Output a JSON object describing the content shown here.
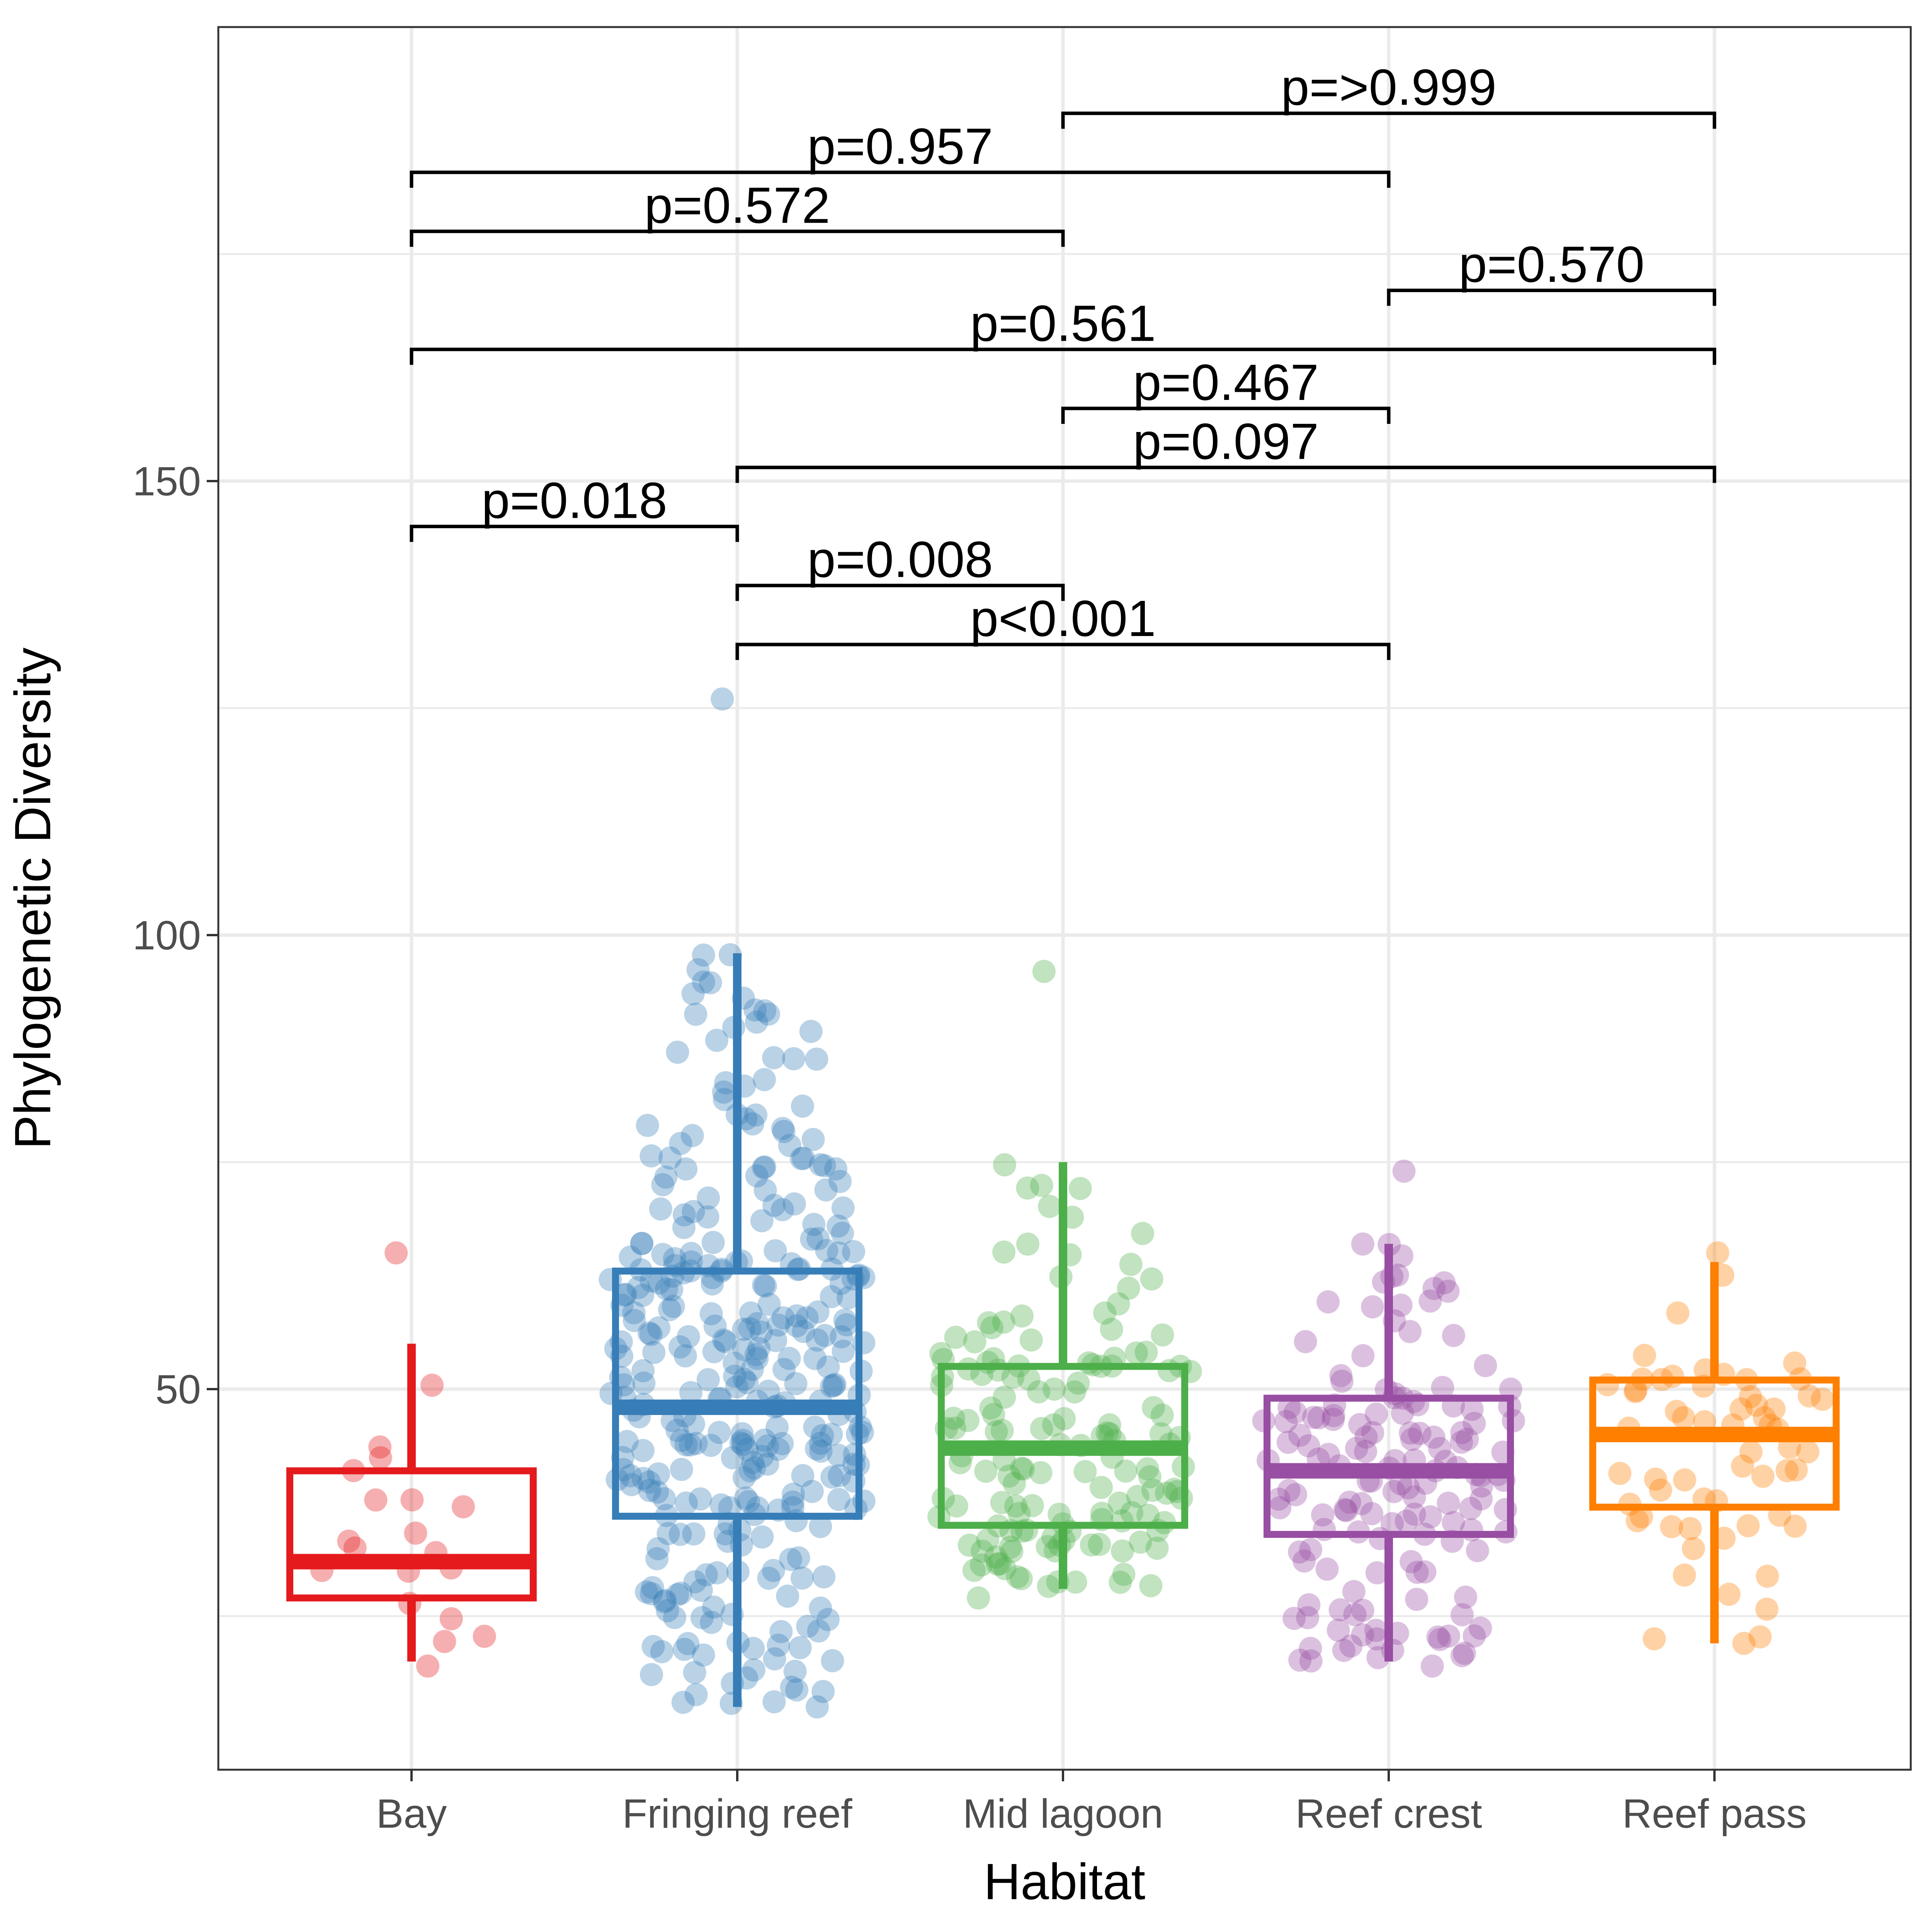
{
  "chart_data": {
    "type": "box",
    "xlabel": "Habitat",
    "ylabel": "Phylogenetic Diversity",
    "ylim": [
      10,
      190
    ],
    "y_ticks": [
      50,
      100,
      150
    ],
    "y_minor_ticks": [
      25,
      75,
      125,
      175
    ],
    "grid": true,
    "categories": [
      "Bay",
      "Fringing reef",
      "Mid lagoon",
      "Reef crest",
      "Reef pass"
    ],
    "colors": [
      "#E41A1C",
      "#377EB8",
      "#4DAF4A",
      "#984EA3",
      "#FF7F00"
    ],
    "boxes": [
      {
        "whisker_low": 20,
        "q1": 27,
        "median": 31,
        "q3": 41,
        "whisker_high": 55,
        "n_points": 20,
        "point_min": 19.5,
        "point_max": 65
      },
      {
        "whisker_low": 15,
        "q1": 36,
        "median": 48,
        "q3": 63,
        "whisker_high": 98,
        "n_points": 340,
        "point_min": 15,
        "point_max": 126
      },
      {
        "whisker_low": 28,
        "q1": 35,
        "median": 43.5,
        "q3": 52.5,
        "whisker_high": 75,
        "n_points": 150,
        "point_min": 27,
        "point_max": 96
      },
      {
        "whisker_low": 20,
        "q1": 34,
        "median": 41,
        "q3": 49,
        "whisker_high": 66,
        "n_points": 150,
        "point_min": 19.5,
        "point_max": 74
      },
      {
        "whisker_low": 22,
        "q1": 37,
        "median": 45,
        "q3": 51,
        "whisker_high": 64,
        "n_points": 60,
        "point_min": 22,
        "point_max": 65
      }
    ],
    "comparisons": [
      {
        "from": "Fringing reef",
        "to": "Reef crest",
        "y": 132,
        "label": "p<0.001"
      },
      {
        "from": "Fringing reef",
        "to": "Mid lagoon",
        "y": 138.5,
        "label": "p=0.008"
      },
      {
        "from": "Bay",
        "to": "Fringing reef",
        "y": 145,
        "label": "p=0.018"
      },
      {
        "from": "Fringing reef",
        "to": "Reef pass",
        "y": 151.5,
        "label": "p=0.097"
      },
      {
        "from": "Mid lagoon",
        "to": "Reef crest",
        "y": 158,
        "label": "p=0.467"
      },
      {
        "from": "Bay",
        "to": "Reef pass",
        "y": 164.5,
        "label": "p=0.561"
      },
      {
        "from": "Reef crest",
        "to": "Reef pass",
        "y": 171,
        "label": "p=0.570"
      },
      {
        "from": "Bay",
        "to": "Mid lagoon",
        "y": 177.5,
        "label": "p=0.572"
      },
      {
        "from": "Bay",
        "to": "Reef crest",
        "y": 184,
        "label": "p=0.957"
      },
      {
        "from": "Mid lagoon",
        "to": "Reef pass",
        "y": 190.5,
        "label": "p=>0.999"
      }
    ]
  }
}
